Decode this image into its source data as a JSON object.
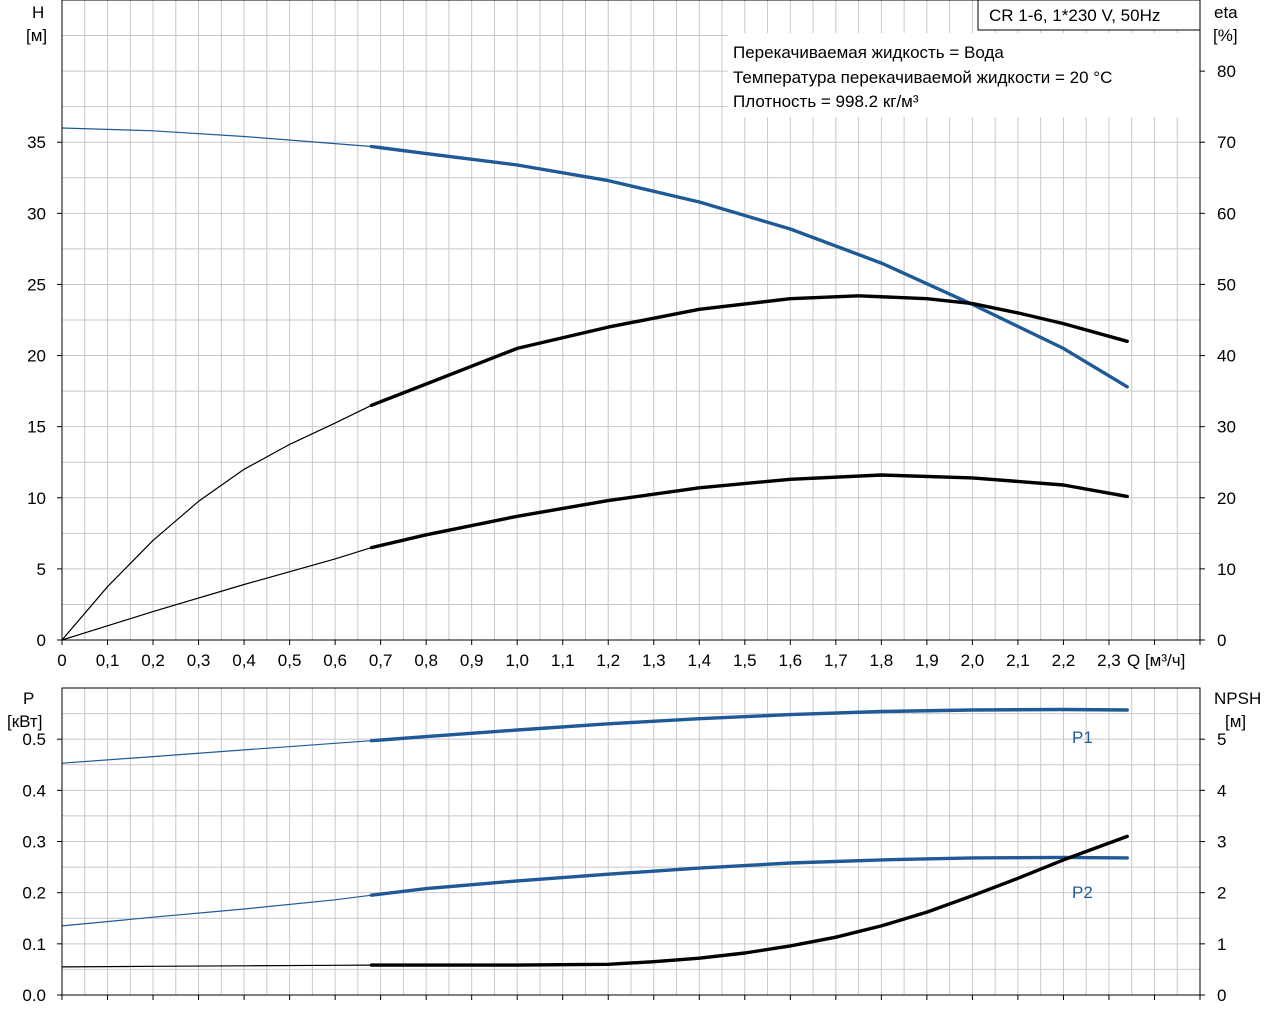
{
  "chart_data": [
    {
      "type": "line",
      "title": "CR 1-6, 1*230 V, 50Hz",
      "annotations": [
        "Перекачиваемая жидкость = Вода",
        "Температура перекачиваемой жидкости = 20 °C",
        "Плотность = 998.2 кг/м³"
      ],
      "xlabel": "Q [м³/ч]",
      "ylabel": [
        "H",
        "[м]"
      ],
      "ylabel_right": [
        "eta",
        "[%]"
      ],
      "xlim": [
        0,
        2.5
      ],
      "ylim": [
        0,
        45
      ],
      "ylim_right": [
        0,
        90
      ],
      "grid": true,
      "x_ticks": [
        "0",
        "0,1",
        "0,2",
        "0,3",
        "0,4",
        "0,5",
        "0,6",
        "0,7",
        "0,8",
        "0,9",
        "1,0",
        "1,1",
        "1,2",
        "1,3",
        "1,4",
        "1,5",
        "1,6",
        "1,7",
        "1,8",
        "1,9",
        "2,0",
        "2,1",
        "2,2",
        "2,3"
      ],
      "y_ticks": [
        "0",
        "5",
        "10",
        "15",
        "20",
        "25",
        "30",
        "35"
      ],
      "y_ticks_right": [
        "0",
        "10",
        "20",
        "30",
        "40",
        "50",
        "60",
        "70",
        "80"
      ],
      "series": [
        {
          "axis": "left",
          "color": "#1f5a96",
          "x": [
            0,
            0.2,
            0.4,
            0.6,
            0.68,
            0.8,
            1.0,
            1.2,
            1.4,
            1.6,
            1.8,
            2.0,
            2.2,
            2.34
          ],
          "values": [
            36.0,
            35.8,
            35.4,
            34.9,
            34.7,
            34.2,
            33.4,
            32.3,
            30.8,
            28.9,
            26.5,
            23.6,
            20.5,
            17.8
          ],
          "duty_start": 0.68
        },
        {
          "axis": "right",
          "color": "#000000",
          "x": [
            0,
            0.1,
            0.2,
            0.3,
            0.4,
            0.5,
            0.6,
            0.68,
            0.8,
            1.0,
            1.2,
            1.4,
            1.6,
            1.75,
            1.9,
            2.0,
            2.1,
            2.2,
            2.34
          ],
          "values": [
            0,
            7.5,
            14.0,
            19.5,
            24.0,
            27.5,
            30.5,
            33.0,
            36.0,
            41.0,
            44.0,
            46.5,
            48.0,
            48.4,
            48.0,
            47.3,
            46.0,
            44.5,
            42.0
          ],
          "duty_start": 0.68
        },
        {
          "axis": "left",
          "color": "#000000",
          "x": [
            0,
            0.2,
            0.4,
            0.6,
            0.68,
            0.8,
            1.0,
            1.2,
            1.4,
            1.6,
            1.8,
            2.0,
            2.2,
            2.34
          ],
          "values": [
            0,
            2.0,
            3.9,
            5.7,
            6.5,
            7.4,
            8.7,
            9.8,
            10.7,
            11.3,
            11.6,
            11.4,
            10.9,
            10.1
          ],
          "duty_start": 0.68
        }
      ]
    },
    {
      "type": "line",
      "xlabel": "",
      "ylabel": [
        "P",
        "[кВт]"
      ],
      "ylabel_right": [
        "NPSH",
        "[м]"
      ],
      "xlim": [
        0,
        2.5
      ],
      "ylim": [
        0,
        0.6
      ],
      "ylim_right": [
        0,
        6
      ],
      "grid": true,
      "y_ticks": [
        "0.0",
        "0.1",
        "0.2",
        "0.3",
        "0.4",
        "0.5"
      ],
      "y_ticks_right": [
        "0",
        "1",
        "2",
        "3",
        "4",
        "5"
      ],
      "series": [
        {
          "name": "P1",
          "axis": "left",
          "color": "#1f5a96",
          "x": [
            0,
            0.2,
            0.4,
            0.6,
            0.68,
            0.8,
            1.0,
            1.2,
            1.4,
            1.6,
            1.8,
            2.0,
            2.2,
            2.34
          ],
          "values": [
            0.453,
            0.466,
            0.479,
            0.492,
            0.497,
            0.505,
            0.518,
            0.53,
            0.54,
            0.548,
            0.554,
            0.557,
            0.558,
            0.557
          ],
          "duty_start": 0.68
        },
        {
          "name": "P2",
          "axis": "left",
          "color": "#1f5a96",
          "x": [
            0,
            0.2,
            0.4,
            0.6,
            0.68,
            0.8,
            1.0,
            1.2,
            1.4,
            1.6,
            1.8,
            2.0,
            2.2,
            2.34
          ],
          "values": [
            0.135,
            0.152,
            0.168,
            0.186,
            0.195,
            0.208,
            0.223,
            0.236,
            0.248,
            0.258,
            0.264,
            0.268,
            0.269,
            0.268
          ],
          "duty_start": 0.68
        },
        {
          "axis": "right",
          "color": "#000000",
          "x": [
            0,
            0.2,
            0.4,
            0.6,
            0.68,
            0.8,
            1.0,
            1.2,
            1.3,
            1.4,
            1.5,
            1.6,
            1.7,
            1.8,
            1.9,
            2.0,
            2.1,
            2.2,
            2.34
          ],
          "values": [
            0.55,
            0.56,
            0.57,
            0.58,
            0.585,
            0.585,
            0.585,
            0.6,
            0.65,
            0.72,
            0.82,
            0.96,
            1.13,
            1.35,
            1.62,
            1.94,
            2.28,
            2.64,
            3.1
          ],
          "duty_start": 0.68
        }
      ]
    }
  ]
}
